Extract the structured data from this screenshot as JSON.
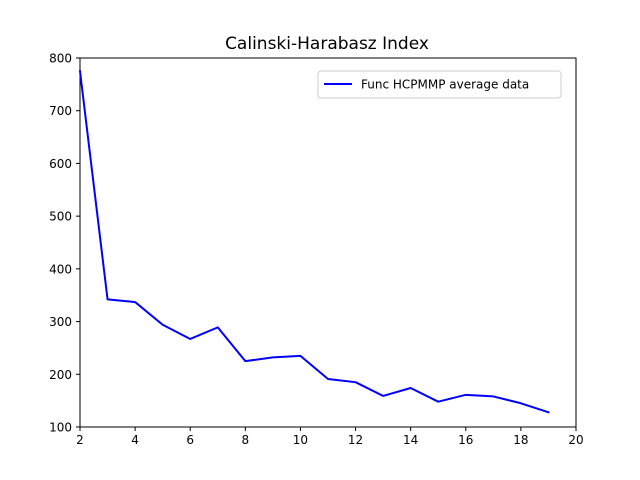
{
  "chart_data": {
    "type": "line",
    "title": "Calinski-Harabasz Index",
    "xlabel": "",
    "ylabel": "",
    "xlim": [
      2,
      20
    ],
    "ylim": [
      100,
      800
    ],
    "x_ticks": [
      2,
      4,
      6,
      8,
      10,
      12,
      14,
      16,
      18,
      20
    ],
    "y_ticks": [
      100,
      200,
      300,
      400,
      500,
      600,
      700,
      800
    ],
    "grid": false,
    "legend_position": "top-right",
    "series": [
      {
        "name": "Func HCPMMP average data",
        "color": "#0000ff",
        "x": [
          2,
          3,
          4,
          5,
          6,
          7,
          8,
          9,
          10,
          11,
          12,
          13,
          14,
          15,
          16,
          17,
          18,
          19
        ],
        "y": [
          775,
          342,
          337,
          294,
          267,
          289,
          225,
          232,
          235,
          191,
          185,
          159,
          174,
          148,
          161,
          158,
          145,
          128
        ]
      }
    ]
  }
}
